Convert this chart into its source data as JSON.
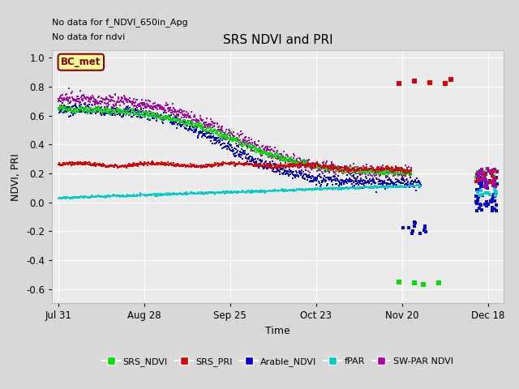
{
  "title": "SRS NDVI and PRI",
  "xlabel": "Time",
  "ylabel": "NDVI, PRI",
  "annotations": [
    "No data for f_NDVI_650in_Apg",
    "No data for ndvi"
  ],
  "ylim": [
    -0.7,
    1.05
  ],
  "yticks": [
    1.0,
    0.8,
    0.6,
    0.4,
    0.2,
    0.0,
    -0.2,
    -0.4,
    -0.6
  ],
  "xtick_labels": [
    "Jul 31",
    "Aug 28",
    "Sep 25",
    "Oct 23",
    "Nov 20",
    "Dec 18"
  ],
  "xtick_days": [
    0,
    28,
    56,
    84,
    112,
    140
  ],
  "xlim": [
    -2,
    145
  ],
  "background_color": "#d8d8d8",
  "plot_bg_color": "#ebebeb",
  "grid_color": "#ffffff",
  "colors": {
    "srs_ndvi": "#00dd00",
    "srs_pri": "#dd0000",
    "arable_ndvi": "#0000cc",
    "fpar": "#00cccc",
    "swpar": "#aa00aa"
  },
  "legend_items": [
    {
      "label": "SRS_NDVI",
      "color": "#00dd00"
    },
    {
      "label": "SRS_PRI",
      "color": "#dd0000"
    },
    {
      "label": "Arable_NDVI",
      "color": "#0000cc"
    },
    {
      "label": "fPAR",
      "color": "#00cccc"
    },
    {
      "label": "SW-PAR NDVI",
      "color": "#aa00aa"
    }
  ],
  "bc_met_box": {
    "text": "BC_met",
    "facecolor": "#ffff99",
    "edgecolor": "#880000"
  },
  "figsize": [
    6.4,
    4.8
  ],
  "dpi": 100
}
